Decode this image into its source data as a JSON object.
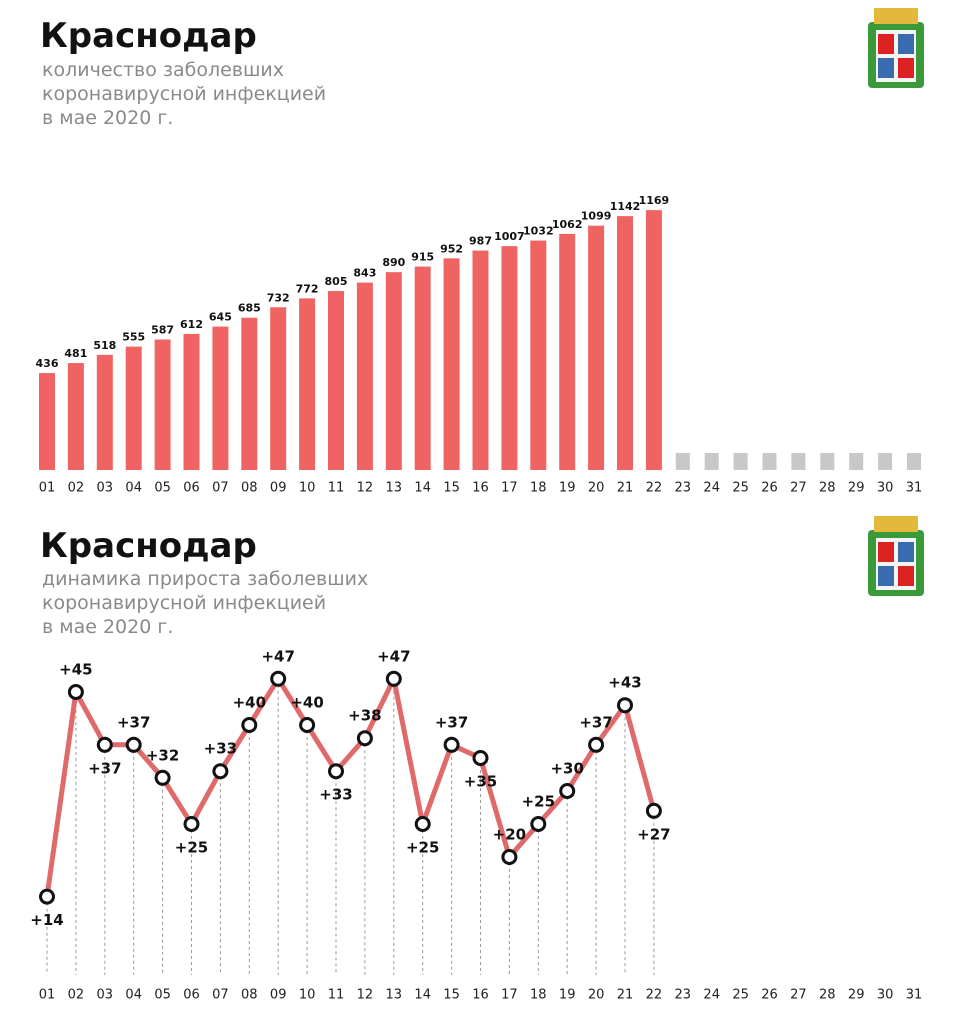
{
  "chart_data": [
    {
      "type": "bar",
      "title": "Краснодар",
      "subtitle": [
        "количество заболевших",
        "коронавирусной инфекцией",
        "в мае 2020 г."
      ],
      "categories": [
        "01",
        "02",
        "03",
        "04",
        "05",
        "06",
        "07",
        "08",
        "09",
        "10",
        "11",
        "12",
        "13",
        "14",
        "15",
        "16",
        "17",
        "18",
        "19",
        "20",
        "21",
        "22",
        "23",
        "24",
        "25",
        "26",
        "27",
        "28",
        "29",
        "30",
        "31"
      ],
      "values": [
        436,
        481,
        518,
        555,
        587,
        612,
        645,
        685,
        732,
        772,
        805,
        843,
        890,
        915,
        952,
        987,
        1007,
        1032,
        1062,
        1099,
        1142,
        1169,
        null,
        null,
        null,
        null,
        null,
        null,
        null,
        null,
        null
      ],
      "color": "#ef6363",
      "ylim": [
        0,
        1300
      ]
    },
    {
      "type": "line",
      "title": "Краснодар",
      "subtitle": [
        "динамика прироста заболевших",
        "коронавирусной инфекцией",
        "в мае 2020 г."
      ],
      "categories": [
        "01",
        "02",
        "03",
        "04",
        "05",
        "06",
        "07",
        "08",
        "09",
        "10",
        "11",
        "12",
        "13",
        "14",
        "15",
        "16",
        "17",
        "18",
        "19",
        "20",
        "21",
        "22",
        "23",
        "24",
        "25",
        "26",
        "27",
        "28",
        "29",
        "30",
        "31"
      ],
      "values": [
        14,
        45,
        37,
        37,
        32,
        25,
        33,
        40,
        47,
        40,
        33,
        38,
        47,
        25,
        37,
        35,
        20,
        25,
        30,
        37,
        43,
        27,
        null,
        null,
        null,
        null,
        null,
        null,
        null,
        null,
        null
      ],
      "value_labels": [
        "+14",
        "+45",
        "+37",
        "+37",
        "+32",
        "+25",
        "+33",
        "+40",
        "+47",
        "+40",
        "+33",
        "+38",
        "+47",
        "+25",
        "+37",
        "+35",
        "+20",
        "+25",
        "+30",
        "+37",
        "+43",
        "+27",
        null,
        null,
        null,
        null,
        null,
        null,
        null,
        null,
        null
      ],
      "color": "#e06a6a",
      "ylim": [
        10,
        50
      ]
    }
  ]
}
